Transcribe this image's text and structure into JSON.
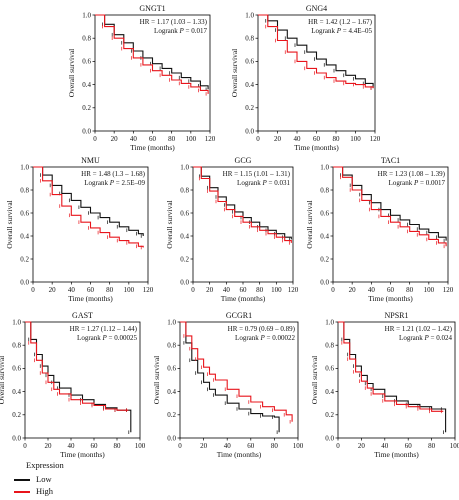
{
  "colors": {
    "low": "#111111",
    "high": "#e8141b",
    "axis": "#000000"
  },
  "legend": {
    "title": "Expression",
    "low_label": "Low",
    "high_label": "High"
  },
  "chart_data": [
    {
      "type": "line",
      "title": "GNGT1",
      "xlabel": "Time (months)",
      "ylabel": "Overall survival",
      "xlim": [
        0,
        120
      ],
      "ylim": [
        0,
        1.0
      ],
      "xticks": [
        0,
        20,
        40,
        60,
        80,
        100,
        120
      ],
      "yticks": [
        "0.0",
        "0.2",
        "0.4",
        "0.6",
        "0.8",
        "1.0"
      ],
      "annotation": {
        "hr": "HR = 1.17 (1.03 – 1.33)",
        "logrank_label": "Logrank ",
        "p_symbol": "P",
        "p_value": " = 0.017"
      },
      "series": [
        {
          "name": "Low",
          "color": "#111111",
          "x": [
            0,
            10,
            20,
            30,
            40,
            50,
            60,
            70,
            80,
            90,
            100,
            110,
            118
          ],
          "y": [
            1.0,
            0.92,
            0.83,
            0.76,
            0.69,
            0.63,
            0.58,
            0.54,
            0.5,
            0.46,
            0.43,
            0.39,
            0.36
          ]
        },
        {
          "name": "High",
          "color": "#e8141b",
          "x": [
            0,
            10,
            20,
            30,
            40,
            50,
            60,
            70,
            80,
            90,
            100,
            110,
            118
          ],
          "y": [
            1.0,
            0.9,
            0.8,
            0.71,
            0.63,
            0.57,
            0.52,
            0.48,
            0.44,
            0.41,
            0.38,
            0.35,
            0.32
          ]
        }
      ]
    },
    {
      "type": "line",
      "title": "GNG4",
      "xlabel": "Time (months)",
      "ylabel": "Overall survival",
      "xlim": [
        0,
        120
      ],
      "ylim": [
        0,
        1.0
      ],
      "xticks": [
        0,
        20,
        40,
        60,
        80,
        100,
        120
      ],
      "yticks": [
        "0.0",
        "0.2",
        "0.4",
        "0.6",
        "0.8",
        "1.0"
      ],
      "annotation": {
        "hr": "HR = 1.42 (1.2 – 1.67)",
        "logrank_label": "Logrank ",
        "p_symbol": "P",
        "p_value": " = 4.4E–05"
      },
      "series": [
        {
          "name": "Low",
          "color": "#111111",
          "x": [
            0,
            10,
            20,
            30,
            40,
            50,
            60,
            70,
            80,
            90,
            100,
            110,
            118
          ],
          "y": [
            1.0,
            0.95,
            0.87,
            0.8,
            0.74,
            0.68,
            0.62,
            0.57,
            0.52,
            0.48,
            0.45,
            0.41,
            0.37
          ]
        },
        {
          "name": "High",
          "color": "#e8141b",
          "x": [
            0,
            10,
            20,
            30,
            40,
            50,
            60,
            70,
            80,
            90,
            100,
            110,
            118
          ],
          "y": [
            1.0,
            0.9,
            0.78,
            0.68,
            0.6,
            0.54,
            0.5,
            0.46,
            0.43,
            0.41,
            0.4,
            0.38,
            0.37
          ]
        }
      ]
    },
    {
      "type": "line",
      "title": "NMU",
      "xlabel": "Time (months)",
      "ylabel": "Overall survival",
      "xlim": [
        0,
        120
      ],
      "ylim": [
        0,
        1.0
      ],
      "xticks": [
        0,
        20,
        40,
        60,
        80,
        100,
        120
      ],
      "yticks": [
        "0.0",
        "0.2",
        "0.4",
        "0.6",
        "0.8",
        "1.0"
      ],
      "annotation": {
        "hr": "HR = 1.48 (1.3 – 1.68)",
        "logrank_label": "Logrank ",
        "p_symbol": "P",
        "p_value": " = 2.5E–09"
      },
      "series": [
        {
          "name": "Low",
          "color": "#111111",
          "x": [
            0,
            10,
            20,
            30,
            40,
            50,
            60,
            70,
            80,
            90,
            100,
            110,
            115
          ],
          "y": [
            1.0,
            0.93,
            0.84,
            0.77,
            0.71,
            0.65,
            0.6,
            0.56,
            0.52,
            0.48,
            0.45,
            0.42,
            0.4
          ]
        },
        {
          "name": "High",
          "color": "#e8141b",
          "x": [
            0,
            10,
            20,
            30,
            40,
            50,
            60,
            70,
            80,
            90,
            100,
            110,
            115
          ],
          "y": [
            1.0,
            0.88,
            0.76,
            0.66,
            0.58,
            0.52,
            0.47,
            0.43,
            0.39,
            0.36,
            0.34,
            0.31,
            0.3
          ]
        }
      ]
    },
    {
      "type": "line",
      "title": "GCG",
      "xlabel": "Time (months)",
      "ylabel": "Overall survival",
      "xlim": [
        0,
        120
      ],
      "ylim": [
        0,
        1.0
      ],
      "xticks": [
        0,
        20,
        40,
        60,
        80,
        100,
        120
      ],
      "yticks": [
        "0.0",
        "0.2",
        "0.4",
        "0.6",
        "0.8",
        "1.0"
      ],
      "annotation": {
        "hr": "HR = 1.15 (1.01 – 1.31)",
        "logrank_label": "Logrank ",
        "p_symbol": "P",
        "p_value": " = 0.031"
      },
      "series": [
        {
          "name": "Low",
          "color": "#111111",
          "x": [
            0,
            10,
            20,
            30,
            40,
            50,
            60,
            70,
            80,
            90,
            100,
            110,
            118
          ],
          "y": [
            1.0,
            0.92,
            0.82,
            0.74,
            0.67,
            0.61,
            0.56,
            0.52,
            0.48,
            0.45,
            0.42,
            0.39,
            0.37
          ]
        },
        {
          "name": "High",
          "color": "#e8141b",
          "x": [
            0,
            10,
            20,
            30,
            40,
            50,
            60,
            70,
            80,
            90,
            100,
            110,
            118
          ],
          "y": [
            1.0,
            0.9,
            0.79,
            0.7,
            0.63,
            0.57,
            0.52,
            0.48,
            0.45,
            0.42,
            0.39,
            0.36,
            0.34
          ]
        }
      ]
    },
    {
      "type": "line",
      "title": "TAC1",
      "xlabel": "Time (months)",
      "ylabel": "Overall survival",
      "xlim": [
        0,
        120
      ],
      "ylim": [
        0,
        1.0
      ],
      "xticks": [
        0,
        20,
        40,
        60,
        80,
        100,
        120
      ],
      "yticks": [
        "0.0",
        "0.2",
        "0.4",
        "0.6",
        "0.8",
        "1.0"
      ],
      "annotation": {
        "hr": "HR = 1.23 (1.08 – 1.39)",
        "logrank_label": "Logrank ",
        "p_symbol": "P",
        "p_value": " = 0.0017"
      },
      "series": [
        {
          "name": "Low",
          "color": "#111111",
          "x": [
            0,
            10,
            20,
            30,
            40,
            50,
            60,
            70,
            80,
            90,
            100,
            110,
            118
          ],
          "y": [
            1.0,
            0.93,
            0.84,
            0.76,
            0.69,
            0.63,
            0.58,
            0.54,
            0.5,
            0.46,
            0.43,
            0.39,
            0.36
          ]
        },
        {
          "name": "High",
          "color": "#e8141b",
          "x": [
            0,
            10,
            20,
            30,
            40,
            50,
            60,
            70,
            80,
            90,
            100,
            110,
            118
          ],
          "y": [
            1.0,
            0.91,
            0.8,
            0.71,
            0.63,
            0.57,
            0.52,
            0.48,
            0.44,
            0.41,
            0.37,
            0.34,
            0.31
          ]
        }
      ]
    },
    {
      "type": "line",
      "title": "GAST",
      "xlabel": "Time (months)",
      "ylabel": "Overall survival",
      "xlim": [
        0,
        100
      ],
      "ylim": [
        0,
        1.0
      ],
      "xticks": [
        0,
        20,
        40,
        60,
        80,
        100
      ],
      "yticks": [
        "0.0",
        "0.2",
        "0.4",
        "0.6",
        "0.8",
        "1.0"
      ],
      "annotation": {
        "hr": "HR = 1.27 (1.12 – 1.44)",
        "logrank_label": "Logrank ",
        "p_symbol": "P",
        "p_value": " = 0.00025"
      },
      "series": [
        {
          "name": "Low",
          "color": "#111111",
          "x": [
            0,
            5,
            10,
            15,
            20,
            25,
            30,
            40,
            50,
            60,
            70,
            80,
            90,
            92
          ],
          "y": [
            1.0,
            0.85,
            0.72,
            0.62,
            0.54,
            0.48,
            0.43,
            0.37,
            0.33,
            0.29,
            0.26,
            0.24,
            0.24,
            0.05
          ]
        },
        {
          "name": "High",
          "color": "#e8141b",
          "x": [
            0,
            5,
            10,
            15,
            20,
            25,
            30,
            40,
            50,
            60,
            70,
            80,
            90
          ],
          "y": [
            1.0,
            0.82,
            0.67,
            0.56,
            0.48,
            0.42,
            0.38,
            0.33,
            0.3,
            0.28,
            0.25,
            0.24,
            0.24
          ]
        }
      ]
    },
    {
      "type": "line",
      "title": "GCGR1",
      "xlabel": "Time (months)",
      "ylabel": "Overall survival",
      "xlim": [
        0,
        100
      ],
      "ylim": [
        0,
        1.0
      ],
      "xticks": [
        0,
        20,
        40,
        60,
        80,
        100
      ],
      "yticks": [
        "0.0",
        "0.2",
        "0.4",
        "0.6",
        "0.8",
        "1.0"
      ],
      "annotation": {
        "hr": "HR = 0.79 (0.69 – 0.89)",
        "logrank_label": "Logrank ",
        "p_symbol": "P",
        "p_value": " = 0.00022"
      },
      "series": [
        {
          "name": "Low",
          "color": "#111111",
          "x": [
            0,
            5,
            10,
            15,
            20,
            25,
            30,
            40,
            50,
            60,
            70,
            80,
            84
          ],
          "y": [
            1.0,
            0.82,
            0.67,
            0.56,
            0.48,
            0.42,
            0.37,
            0.3,
            0.25,
            0.21,
            0.19,
            0.18,
            0.05
          ]
        },
        {
          "name": "High",
          "color": "#e8141b",
          "x": [
            0,
            5,
            10,
            15,
            20,
            25,
            30,
            40,
            50,
            60,
            70,
            80,
            90,
            95
          ],
          "y": [
            1.0,
            0.88,
            0.77,
            0.68,
            0.61,
            0.55,
            0.5,
            0.42,
            0.36,
            0.31,
            0.27,
            0.24,
            0.2,
            0.14
          ]
        }
      ]
    },
    {
      "type": "line",
      "title": "NPSR1",
      "xlabel": "Time (months)",
      "ylabel": "Overall survival",
      "xlim": [
        0,
        100
      ],
      "ylim": [
        0,
        1.0
      ],
      "xticks": [
        0,
        20,
        40,
        60,
        80,
        100
      ],
      "yticks": [
        "0.0",
        "0.2",
        "0.4",
        "0.6",
        "0.8",
        "1.0"
      ],
      "annotation": {
        "hr": "HR = 1.21 (1.02 – 1.42)",
        "logrank_label": "Logrank ",
        "p_symbol": "P",
        "p_value": " = 0.024"
      },
      "series": [
        {
          "name": "Low",
          "color": "#111111",
          "x": [
            0,
            5,
            10,
            15,
            20,
            25,
            30,
            40,
            50,
            60,
            70,
            80,
            90,
            92
          ],
          "y": [
            1.0,
            0.85,
            0.72,
            0.62,
            0.54,
            0.47,
            0.42,
            0.36,
            0.32,
            0.29,
            0.27,
            0.25,
            0.25,
            0.05
          ]
        },
        {
          "name": "High",
          "color": "#e8141b",
          "x": [
            0,
            5,
            10,
            15,
            20,
            25,
            30,
            40,
            50,
            60,
            70,
            80,
            90
          ],
          "y": [
            1.0,
            0.82,
            0.68,
            0.57,
            0.49,
            0.43,
            0.38,
            0.32,
            0.29,
            0.27,
            0.25,
            0.23,
            0.23
          ]
        }
      ]
    }
  ]
}
